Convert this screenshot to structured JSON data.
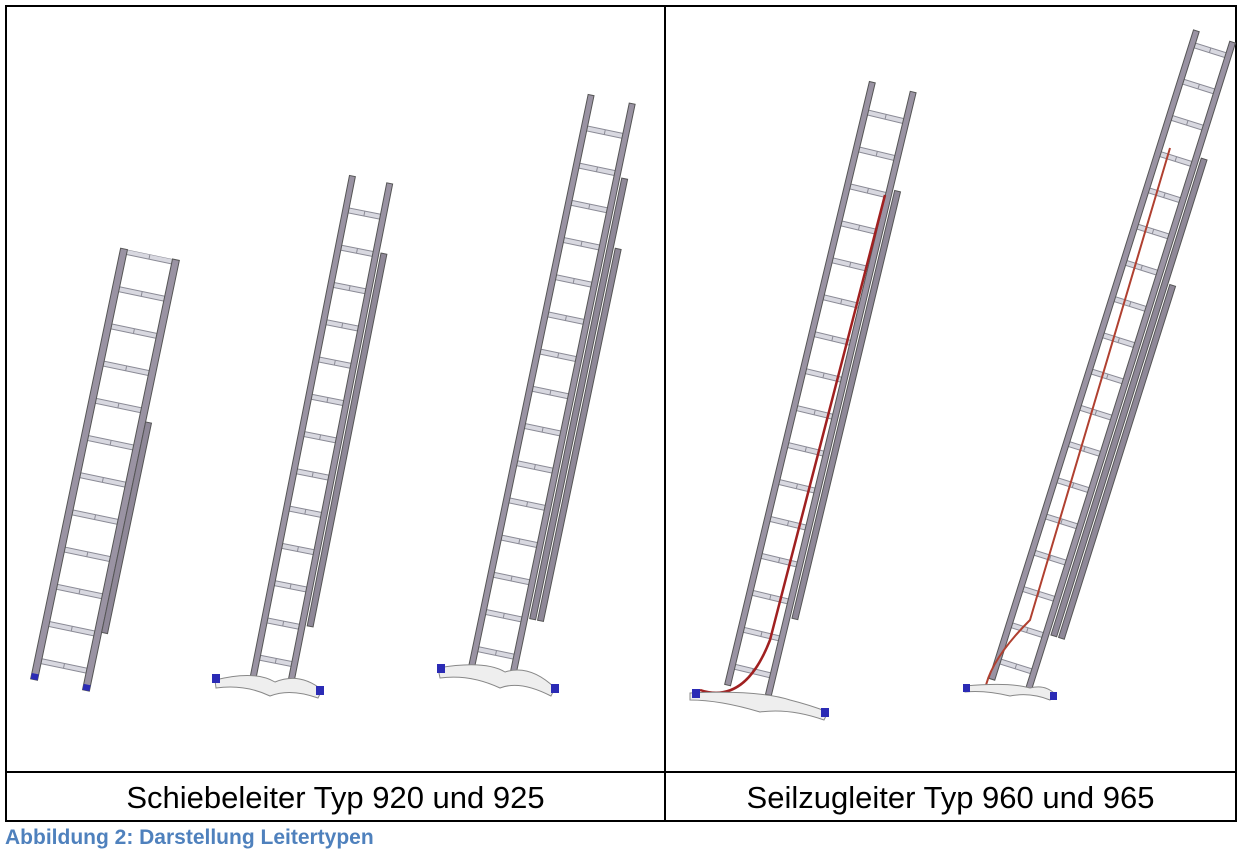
{
  "table": {
    "rows": [
      [
        "Schiebeleiter Typ 920 und 925",
        "Seilzugleiter Typ 960 und 965"
      ]
    ]
  },
  "caption": "Abbildung 2: Darstellung Leitertypen"
}
